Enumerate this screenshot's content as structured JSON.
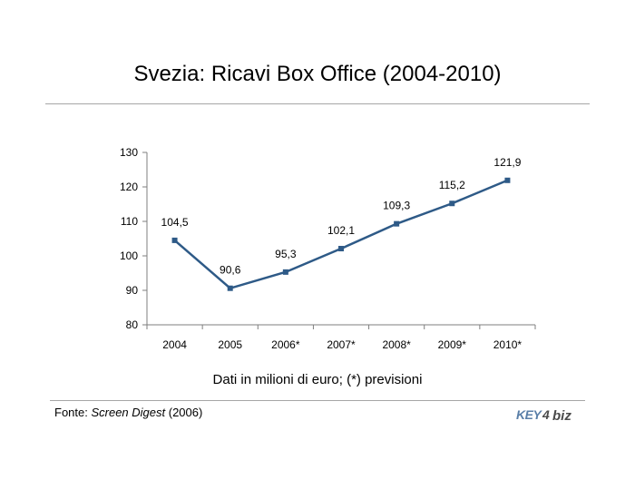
{
  "chart_data": {
    "type": "line",
    "title": "Svezia: Ricavi Box Office (2004-2010)",
    "categories": [
      "2004",
      "2005",
      "2006*",
      "2007*",
      "2008*",
      "2009*",
      "2010*"
    ],
    "series": [
      {
        "values": [
          104.5,
          90.6,
          95.3,
          102.1,
          109.3,
          115.2,
          121.9
        ]
      }
    ],
    "data_labels": [
      "104,5",
      "90,6",
      "95,3",
      "102,1",
      "109,3",
      "115,2",
      "121,9"
    ],
    "yticks": [
      80,
      90,
      100,
      110,
      120,
      130
    ],
    "ylim": [
      80,
      130
    ],
    "grid": false,
    "line_color": "#2e5a87",
    "caption": "Dati in milioni di euro; (*) previsioni"
  },
  "source": {
    "prefix": "Fonte: ",
    "publication": "Screen Digest",
    "suffix": " (2006)"
  },
  "logo": {
    "text_a": "KEY",
    "text_b": "4",
    "text_c": "biz",
    "color_a": "#5a7fa8",
    "color_b": "#4a4a4a"
  }
}
